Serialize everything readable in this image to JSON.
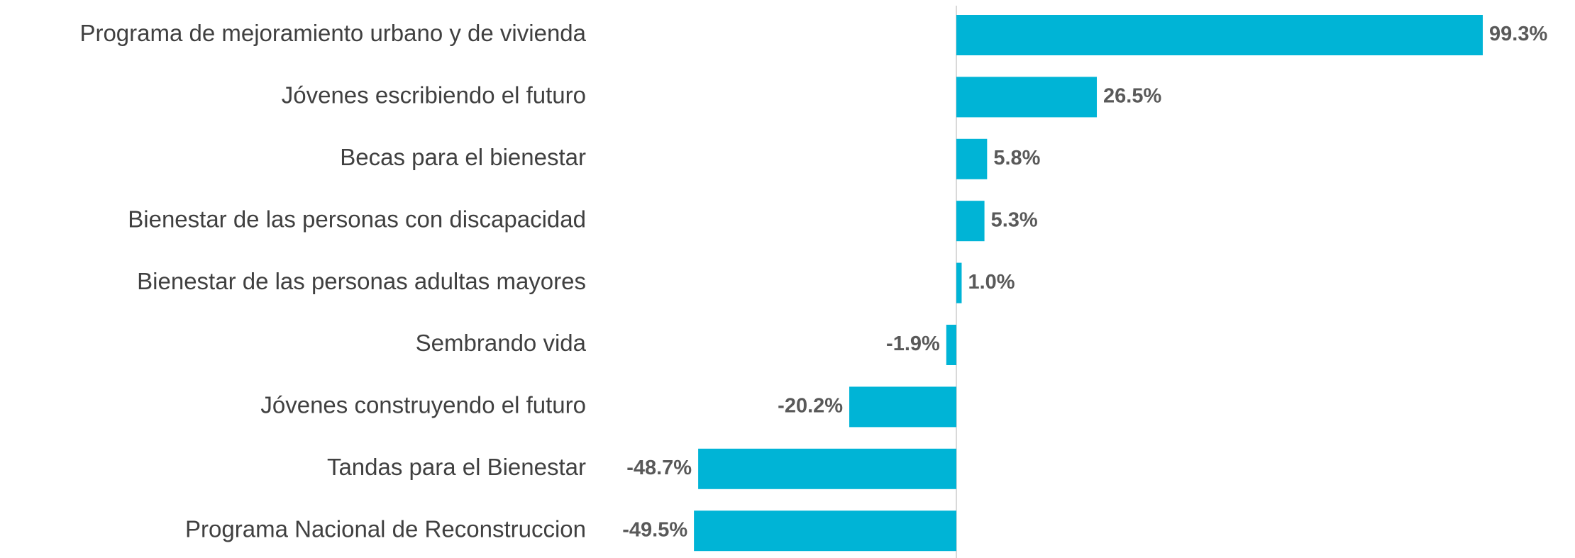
{
  "chart_data": {
    "type": "hbar",
    "categories": [
      "Programa de mejoramiento urbano y de vivienda",
      "Jóvenes escribiendo el futuro",
      "Becas para el bienestar",
      "Bienestar de las personas con discapacidad",
      "Bienestar de las personas adultas mayores",
      "Sembrando vida",
      "Jóvenes construyendo el futuro",
      "Tandas para el Bienestar",
      "Programa Nacional de Reconstruccion"
    ],
    "values": [
      99.3,
      26.5,
      5.8,
      5.3,
      1.0,
      -1.9,
      -20.2,
      -48.7,
      -49.5
    ],
    "value_labels": [
      "99.3%",
      "26.5%",
      "5.8%",
      "5.3%",
      "1.0%",
      "-1.9%",
      "-20.2%",
      "-48.7%",
      "-49.5%"
    ],
    "color": "#00b4d6"
  }
}
